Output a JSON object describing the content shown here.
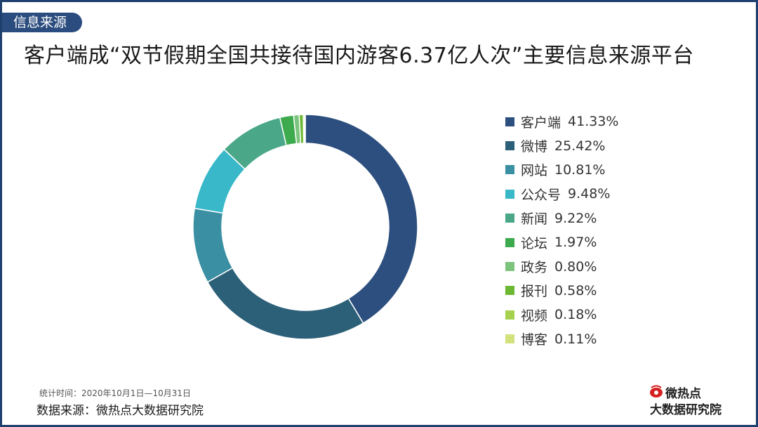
{
  "header": {
    "tag": "信息来源",
    "title": "客户端成“双节假期全国共接待国内游客6.37亿人次”主要信息来源平台"
  },
  "chart_data": {
    "type": "pie",
    "donut": true,
    "title": "客户端成“双节假期全国共接待国内游客6.37亿人次”主要信息来源平台",
    "legend_position": "right",
    "slices": [
      {
        "label": "客户端",
        "value": 41.33,
        "display": "41.33%",
        "color": "#2d4f7f"
      },
      {
        "label": "微博",
        "value": 25.42,
        "display": "25.42%",
        "color": "#2c5f78"
      },
      {
        "label": "网站",
        "value": 10.81,
        "display": "10.81%",
        "color": "#3a8fa3"
      },
      {
        "label": "公众号",
        "value": 9.48,
        "display": "9.48%",
        "color": "#38b8c8"
      },
      {
        "label": "新闻",
        "value": 9.22,
        "display": "9.22%",
        "color": "#4aa889"
      },
      {
        "label": "论坛",
        "value": 1.97,
        "display": "1.97%",
        "color": "#3daa4e"
      },
      {
        "label": "政务",
        "value": 0.8,
        "display": "0.80%",
        "color": "#7cc47d"
      },
      {
        "label": "报刊",
        "value": 0.58,
        "display": "0.58%",
        "color": "#6cb832"
      },
      {
        "label": "视频",
        "value": 0.18,
        "display": "0.18%",
        "color": "#a6d14e"
      },
      {
        "label": "博客",
        "value": 0.11,
        "display": "0.11%",
        "color": "#d3e27c"
      }
    ]
  },
  "footer": {
    "time": "统计时间：2020年10月1日—10月31日",
    "source": "数据来源：微热点大数据研究院",
    "logo_line1": "微热点",
    "logo_line2": "大数据研究院"
  }
}
